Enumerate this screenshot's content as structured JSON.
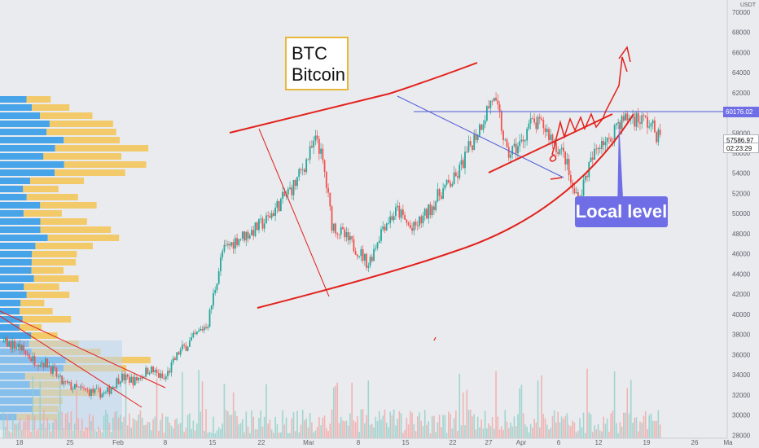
{
  "chart_data": {
    "type": "candlestick",
    "symbol_label": {
      "line1": "BTC",
      "line2": "Bitcoin"
    },
    "currency": "USDT",
    "y_ticks": [
      28000,
      30000,
      32000,
      34000,
      36000,
      38000,
      40000,
      42000,
      44000,
      46000,
      48000,
      50000,
      52000,
      54000,
      56000,
      58000,
      60000,
      62000,
      64000,
      66000,
      68000,
      70000
    ],
    "x_ticks": [
      "18",
      "25",
      "Feb",
      "8",
      "15",
      "22",
      "Mar",
      "8",
      "15",
      "22",
      "27",
      "Apr",
      "6",
      "12",
      "19",
      "26",
      "Ma"
    ],
    "ylim": [
      27700,
      71200
    ],
    "x_range_days": [
      -22.5,
      77.2
    ],
    "key_level_tag": "60176.02",
    "last_price_tag": "57586.97",
    "countdown_tag": "02:23:29",
    "annotation": "Local level",
    "price_path": [
      [
        -22,
        37200
      ],
      [
        -20,
        36800
      ],
      [
        -18,
        35500
      ],
      [
        -16,
        35100
      ],
      [
        -14,
        33200
      ],
      [
        -12,
        32600
      ],
      [
        -10,
        32300
      ],
      [
        -8,
        32100
      ],
      [
        -6,
        33800
      ],
      [
        -4,
        33400
      ],
      [
        -2,
        34600
      ],
      [
        0,
        33500
      ],
      [
        2,
        36200
      ],
      [
        4,
        37600
      ],
      [
        6,
        39200
      ],
      [
        8,
        46200
      ],
      [
        10,
        47500
      ],
      [
        12,
        48200
      ],
      [
        14,
        49300
      ],
      [
        16,
        51200
      ],
      [
        18,
        53000
      ],
      [
        20,
        56000
      ],
      [
        21,
        57500
      ],
      [
        22,
        54000
      ],
      [
        23,
        49000
      ],
      [
        25,
        47500
      ],
      [
        27,
        46000
      ],
      [
        28,
        45000
      ],
      [
        30,
        48800
      ],
      [
        32,
        50300
      ],
      [
        34,
        48300
      ],
      [
        36,
        50000
      ],
      [
        38,
        52200
      ],
      [
        40,
        53500
      ],
      [
        42,
        56800
      ],
      [
        43,
        58200
      ],
      [
        45,
        61500
      ],
      [
        46,
        59500
      ],
      [
        47,
        55800
      ],
      [
        49,
        57000
      ],
      [
        50,
        58900
      ],
      [
        52,
        58700
      ],
      [
        54,
        56500
      ],
      [
        55,
        55500
      ],
      [
        56,
        52200
      ],
      [
        57,
        51700
      ],
      [
        58,
        54200
      ],
      [
        60,
        57500
      ],
      [
        61,
        56900
      ],
      [
        62,
        59000
      ],
      [
        64,
        59600
      ],
      [
        66,
        59200
      ],
      [
        67,
        58500
      ],
      [
        68,
        57400
      ]
    ],
    "volume_profile_left": "horizontal volume-by-price histogram (blue/yellow) along the left edge",
    "drawings": [
      "upper red channel line",
      "lower red curved channel line",
      "blue horizontal level at 60176.02",
      "blue descending trendline",
      "red hand-drawn price path and arrow"
    ]
  }
}
